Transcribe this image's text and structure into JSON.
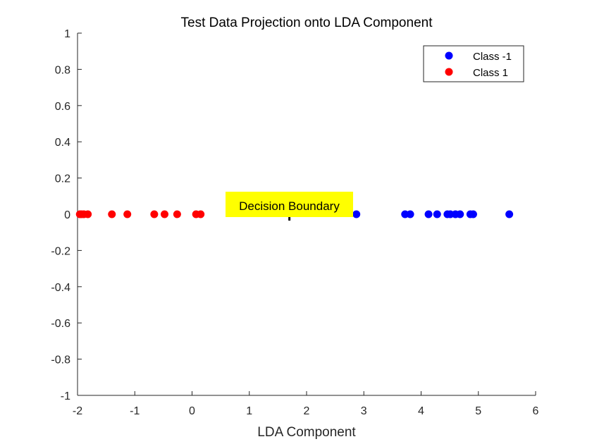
{
  "chart_data": {
    "type": "scatter",
    "title": "Test Data Projection onto LDA Component",
    "xlabel": "LDA Component",
    "ylabel": "",
    "xlim": [
      -2,
      6
    ],
    "ylim": [
      -1,
      1
    ],
    "xticks": [
      "-2",
      "-1",
      "0",
      "1",
      "2",
      "3",
      "4",
      "5",
      "6"
    ],
    "yticks": [
      "-1",
      "-0.8",
      "-0.6",
      "-0.4",
      "-0.2",
      "0",
      "0.2",
      "0.4",
      "0.6",
      "0.8",
      "1"
    ],
    "grid": false,
    "legend_position": "top-right",
    "series": [
      {
        "name": "Class -1",
        "color": "#0000ff",
        "x": [
          2.87,
          3.72,
          3.81,
          4.13,
          4.28,
          4.46,
          4.51,
          4.6,
          4.68,
          4.86,
          4.91,
          5.54
        ],
        "y": [
          0,
          0,
          0,
          0,
          0,
          0,
          0,
          0,
          0,
          0,
          0,
          0
        ]
      },
      {
        "name": "Class 1",
        "color": "#ff0000",
        "x": [
          -1.96,
          -1.93,
          -1.89,
          -1.82,
          -1.4,
          -1.13,
          -0.66,
          -0.48,
          -0.26,
          0.07,
          0.15
        ],
        "y": [
          0,
          0,
          0,
          0,
          0,
          0,
          0,
          0,
          0,
          0,
          0
        ]
      }
    ],
    "annotation": {
      "text": "Decision Boundary",
      "x": 1.7,
      "y": 0,
      "background": "#ffff00"
    }
  }
}
